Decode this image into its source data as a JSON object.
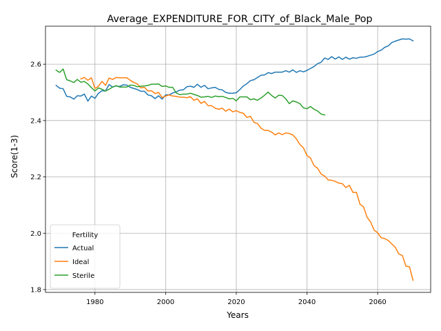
{
  "chart_data": {
    "type": "line",
    "title": "Average_EXPENDITURE_FOR_CITY_of_Black_Male_Pop",
    "xlabel": "Years",
    "ylabel": "Score(1-3)",
    "xlim": [
      1966,
      2075
    ],
    "ylim": [
      1.79,
      2.735
    ],
    "xticks": [
      1980,
      2000,
      2020,
      2040,
      2060
    ],
    "yticks": [
      1.8,
      2.0,
      2.2,
      2.4,
      2.6
    ],
    "xtick_labels": [
      "1980",
      "2000",
      "2020",
      "2040",
      "2060"
    ],
    "ytick_labels": [
      "1.8",
      "2.0",
      "2.2",
      "2.4",
      "2.6"
    ],
    "grid": true,
    "legend": {
      "title": "Fertility",
      "placement": "lower-left"
    },
    "series": [
      {
        "name": "Actual",
        "color": "#1f77b4",
        "x": [
          1969,
          1970,
          1971,
          1972,
          1973,
          1974,
          1975,
          1976,
          1977,
          1978,
          1979,
          1980,
          1981,
          1982,
          1983,
          1984,
          1985,
          1986,
          1987,
          1988,
          1989,
          1990,
          1991,
          1992,
          1993,
          1994,
          1995,
          1996,
          1997,
          1998,
          1999,
          2000,
          2001,
          2002,
          2003,
          2004,
          2005,
          2006,
          2007,
          2008,
          2009,
          2010,
          2011,
          2012,
          2013,
          2014,
          2015,
          2016,
          2017,
          2018,
          2019,
          2020,
          2021,
          2022,
          2023,
          2024,
          2025,
          2026,
          2027,
          2028,
          2029,
          2030,
          2031,
          2032,
          2033,
          2034,
          2035,
          2036,
          2037,
          2038,
          2039,
          2040,
          2041,
          2042,
          2043,
          2044,
          2045,
          2046,
          2047,
          2048,
          2049,
          2050,
          2051,
          2052,
          2053,
          2054,
          2055,
          2056,
          2057,
          2058,
          2059,
          2060,
          2061,
          2062,
          2063,
          2064,
          2065,
          2066,
          2067,
          2068,
          2069,
          2070
        ],
        "values": [
          2.525,
          2.515,
          2.513,
          2.486,
          2.484,
          2.476,
          2.488,
          2.487,
          2.494,
          2.469,
          2.487,
          2.479,
          2.497,
          2.506,
          2.505,
          2.528,
          2.519,
          2.523,
          2.521,
          2.527,
          2.526,
          2.518,
          2.514,
          2.51,
          2.504,
          2.504,
          2.491,
          2.488,
          2.478,
          2.488,
          2.476,
          2.491,
          2.491,
          2.498,
          2.502,
          2.508,
          2.509,
          2.52,
          2.522,
          2.518,
          2.529,
          2.518,
          2.525,
          2.513,
          2.516,
          2.518,
          2.511,
          2.509,
          2.5,
          2.497,
          2.497,
          2.499,
          2.51,
          2.523,
          2.531,
          2.542,
          2.545,
          2.553,
          2.561,
          2.562,
          2.57,
          2.567,
          2.572,
          2.572,
          2.572,
          2.577,
          2.572,
          2.58,
          2.571,
          2.577,
          2.573,
          2.578,
          2.585,
          2.592,
          2.602,
          2.607,
          2.622,
          2.617,
          2.627,
          2.618,
          2.626,
          2.617,
          2.625,
          2.618,
          2.623,
          2.621,
          2.625,
          2.625,
          2.628,
          2.632,
          2.636,
          2.645,
          2.65,
          2.66,
          2.665,
          2.677,
          2.682,
          2.686,
          2.69,
          2.689,
          2.69,
          2.683
        ]
      },
      {
        "name": "Ideal",
        "color": "#ff7f0e",
        "x": [
          1976,
          1977,
          1978,
          1979,
          1980,
          1981,
          1982,
          1983,
          1984,
          1985,
          1986,
          1987,
          1988,
          1989,
          1990,
          1991,
          1992,
          1993,
          1994,
          1995,
          1996,
          1997,
          1998,
          1999,
          2000,
          2001,
          2002,
          2003,
          2004,
          2005,
          2006,
          2007,
          2008,
          2009,
          2010,
          2011,
          2012,
          2013,
          2014,
          2015,
          2016,
          2017,
          2018,
          2019,
          2020,
          2021,
          2022,
          2023,
          2024,
          2025,
          2026,
          2027,
          2028,
          2029,
          2030,
          2031,
          2032,
          2033,
          2034,
          2035,
          2036,
          2037,
          2038,
          2039,
          2040,
          2041,
          2042,
          2043,
          2044,
          2045,
          2046,
          2047,
          2048,
          2049,
          2050,
          2051,
          2052,
          2053,
          2054,
          2055,
          2056,
          2057,
          2058,
          2059,
          2060,
          2061,
          2062,
          2063,
          2064,
          2065,
          2066,
          2067,
          2068,
          2069,
          2070
        ],
        "values": [
          2.548,
          2.553,
          2.543,
          2.552,
          2.514,
          2.522,
          2.539,
          2.525,
          2.551,
          2.546,
          2.553,
          2.552,
          2.552,
          2.552,
          2.543,
          2.535,
          2.53,
          2.516,
          2.518,
          2.505,
          2.506,
          2.496,
          2.5,
          2.482,
          2.487,
          2.491,
          2.487,
          2.486,
          2.483,
          2.483,
          2.481,
          2.485,
          2.472,
          2.477,
          2.461,
          2.468,
          2.453,
          2.453,
          2.444,
          2.44,
          2.444,
          2.433,
          2.441,
          2.431,
          2.435,
          2.429,
          2.426,
          2.411,
          2.415,
          2.394,
          2.389,
          2.373,
          2.365,
          2.365,
          2.359,
          2.349,
          2.356,
          2.35,
          2.356,
          2.354,
          2.349,
          2.335,
          2.315,
          2.303,
          2.276,
          2.267,
          2.24,
          2.231,
          2.21,
          2.203,
          2.189,
          2.188,
          2.184,
          2.178,
          2.176,
          2.162,
          2.17,
          2.145,
          2.145,
          2.103,
          2.094,
          2.057,
          2.04,
          2.011,
          2.002,
          1.984,
          1.981,
          1.974,
          1.962,
          1.95,
          1.926,
          1.921,
          1.883,
          1.881,
          1.833
        ]
      },
      {
        "name": "Sterile",
        "color": "#2ca02c",
        "x": [
          1969,
          1970,
          1971,
          1972,
          1973,
          1974,
          1975,
          1976,
          1977,
          1978,
          1979,
          1980,
          1981,
          1982,
          1983,
          1984,
          1985,
          1986,
          1987,
          1988,
          1989,
          1990,
          1991,
          1992,
          1993,
          1994,
          1995,
          1996,
          1997,
          1998,
          1999,
          2000,
          2001,
          2002,
          2003,
          2004,
          2005,
          2006,
          2007,
          2008,
          2009,
          2010,
          2011,
          2012,
          2013,
          2014,
          2015,
          2016,
          2017,
          2018,
          2019,
          2020,
          2021,
          2022,
          2023,
          2024,
          2025,
          2026,
          2027,
          2028,
          2029,
          2030,
          2031,
          2032,
          2033,
          2034,
          2035,
          2036,
          2037,
          2038,
          2039,
          2040,
          2041,
          2042,
          2043,
          2044,
          2045
        ],
        "values": [
          2.579,
          2.571,
          2.583,
          2.545,
          2.541,
          2.535,
          2.546,
          2.536,
          2.539,
          2.53,
          2.517,
          2.505,
          2.516,
          2.511,
          2.505,
          2.511,
          2.519,
          2.524,
          2.519,
          2.519,
          2.519,
          2.526,
          2.525,
          2.52,
          2.522,
          2.523,
          2.525,
          2.529,
          2.529,
          2.53,
          2.521,
          2.523,
          2.518,
          2.518,
          2.498,
          2.492,
          2.494,
          2.494,
          2.497,
          2.493,
          2.489,
          2.483,
          2.484,
          2.486,
          2.482,
          2.487,
          2.485,
          2.486,
          2.482,
          2.477,
          2.479,
          2.47,
          2.484,
          2.484,
          2.484,
          2.474,
          2.477,
          2.472,
          2.48,
          2.49,
          2.501,
          2.489,
          2.48,
          2.49,
          2.489,
          2.477,
          2.46,
          2.47,
          2.466,
          2.46,
          2.445,
          2.442,
          2.45,
          2.44,
          2.434,
          2.423,
          2.42
        ]
      }
    ]
  }
}
